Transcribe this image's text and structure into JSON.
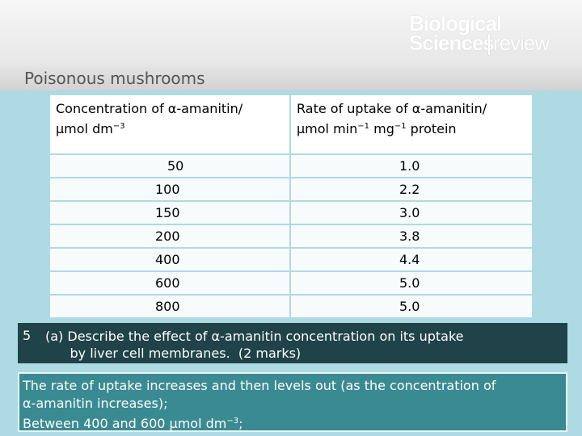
{
  "logo": {
    "line1": "Biological",
    "line2": "Sciences",
    "line3": "review"
  },
  "slide": {
    "title": "Poisonous mushrooms"
  },
  "table": {
    "header1_line1": "Concentration of α-amanitin/",
    "header1_line2": "μmol dm",
    "header1_sup": "−3",
    "header2_line1": "Rate of uptake of α-amanitin/",
    "header2_part1": "μmol min",
    "header2_sup1": "−1",
    "header2_part2": " mg",
    "header2_sup2": "−1",
    "header2_part3": " protein",
    "rows": [
      {
        "concentration": "50",
        "rate": "1.0"
      },
      {
        "concentration": "100",
        "rate": "2.2"
      },
      {
        "concentration": "150",
        "rate": "3.0"
      },
      {
        "concentration": "200",
        "rate": "3.8"
      },
      {
        "concentration": "400",
        "rate": "4.4"
      },
      {
        "concentration": "600",
        "rate": "5.0"
      },
      {
        "concentration": "800",
        "rate": "5.0"
      }
    ]
  },
  "question": {
    "number": "5",
    "line1": "(a)  Describe the effect of α-amanitin concentration on its uptake",
    "line2": "      by liver cell membranes.  (2 marks)"
  },
  "answer": {
    "line1": "The rate of uptake increases and then levels out (as the concentration of",
    "line2": "α-amanitin increases);",
    "line3_part1": "Between 400 and 600 μmol dm",
    "line3_sup": "−3",
    "line3_part2": ";"
  },
  "colors": {
    "background": "#aedbe3",
    "question_bg": "#1f4348",
    "answer_bg": "#3a8a92"
  }
}
